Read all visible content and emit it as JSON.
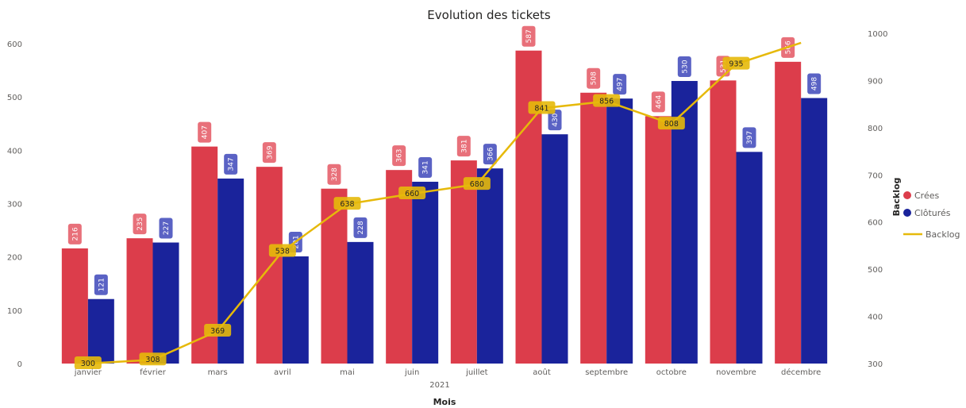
{
  "chart_data": {
    "type": "bar",
    "title": "Evolution des tickets",
    "xlabel": "Mois",
    "year_label": "2021",
    "ylabel_right": "Backlog",
    "categories": [
      "janvier",
      "février",
      "mars",
      "avril",
      "mai",
      "juin",
      "juillet",
      "août",
      "septembre",
      "octobre",
      "novembre",
      "décembre"
    ],
    "series": [
      {
        "name": "Crées",
        "type": "bar",
        "axis": "left",
        "color": "#dc3d4b",
        "values": [
          216,
          235,
          407,
          369,
          328,
          363,
          381,
          587,
          508,
          464,
          531,
          566
        ]
      },
      {
        "name": "Clôturés",
        "type": "bar",
        "axis": "left",
        "color": "#1a239b",
        "values": [
          121,
          227,
          347,
          201,
          228,
          341,
          366,
          430,
          497,
          530,
          397,
          498
        ]
      },
      {
        "name": "Backlog",
        "type": "line",
        "axis": "right",
        "color": "#e6b90a",
        "values": [
          300,
          308,
          369,
          538,
          638,
          660,
          680,
          841,
          856,
          808,
          935,
          980
        ],
        "labels": [
          "300",
          "308",
          "369",
          "538",
          "638",
          "660",
          "680",
          "841",
          "856",
          "808",
          "935",
          ""
        ]
      }
    ],
    "ylim_left": [
      0,
      600
    ],
    "yticks_left": [
      0,
      100,
      200,
      300,
      400,
      500,
      600
    ],
    "ylim_right": [
      300,
      1000
    ],
    "yticks_right": [
      300,
      400,
      500,
      600,
      700,
      800,
      900,
      1000
    ],
    "legend_position": "right",
    "grid": false
  }
}
